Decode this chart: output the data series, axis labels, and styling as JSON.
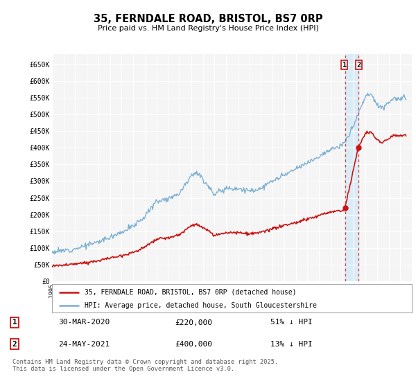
{
  "title": "35, FERNDALE ROAD, BRISTOL, BS7 0RP",
  "subtitle": "Price paid vs. HM Land Registry's House Price Index (HPI)",
  "ylim": [
    0,
    680000
  ],
  "yticks": [
    0,
    50000,
    100000,
    150000,
    200000,
    250000,
    300000,
    350000,
    400000,
    450000,
    500000,
    550000,
    600000,
    650000
  ],
  "ytick_labels": [
    "£0",
    "£50K",
    "£100K",
    "£150K",
    "£200K",
    "£250K",
    "£300K",
    "£350K",
    "£400K",
    "£450K",
    "£500K",
    "£550K",
    "£600K",
    "£650K"
  ],
  "hpi_color": "#7bafd4",
  "price_color": "#cc1111",
  "transaction1_date": 2020.24,
  "transaction1_price": 220000,
  "transaction2_date": 2021.38,
  "transaction2_price": 400000,
  "legend_label1": "35, FERNDALE ROAD, BRISTOL, BS7 0RP (detached house)",
  "legend_label2": "HPI: Average price, detached house, South Gloucestershire",
  "note1_date": "30-MAR-2020",
  "note1_price": "£220,000",
  "note1_hpi": "51% ↓ HPI",
  "note2_date": "24-MAY-2021",
  "note2_price": "£400,000",
  "note2_hpi": "13% ↓ HPI",
  "footer": "Contains HM Land Registry data © Crown copyright and database right 2025.\nThis data is licensed under the Open Government Licence v3.0.",
  "background_color": "#ffffff",
  "plot_bg_color": "#f5f5f5",
  "shade_color": "#d0e8f5"
}
